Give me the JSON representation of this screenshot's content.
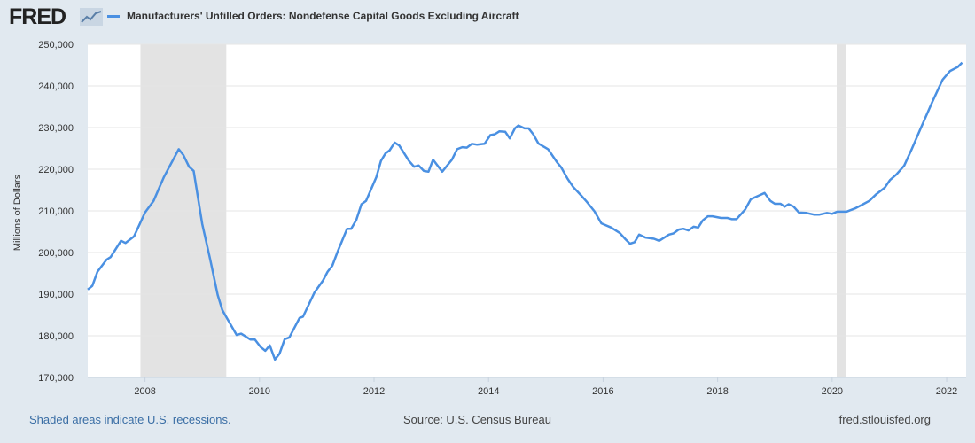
{
  "header": {
    "logo": "FRED",
    "title": "Manufacturers' Unfilled Orders: Nondefense Capital Goods Excluding Aircraft"
  },
  "footer": {
    "recession_note": "Shaded areas indicate U.S. recessions.",
    "source": "Source: U.S. Census Bureau",
    "site": "fred.stlouisfed.org"
  },
  "colors": {
    "line": "#4a90e2",
    "recession": "#e3e3e3",
    "grid": "#e6e6e6",
    "background": "#e1e9f0"
  },
  "chart_data": {
    "type": "line",
    "title": "Manufacturers' Unfilled Orders: Nondefense Capital Goods Excluding Aircraft",
    "xlabel": "",
    "ylabel": "Millions of Dollars",
    "xlim": [
      2007.0,
      2022.34
    ],
    "ylim": [
      170000,
      250000
    ],
    "grid": true,
    "legend_position": "top-left",
    "x_ticks": [
      2008,
      2010,
      2012,
      2014,
      2016,
      2018,
      2020,
      2022
    ],
    "x_tick_labels": [
      "2008",
      "2010",
      "2012",
      "2014",
      "2016",
      "2018",
      "2020",
      "2022"
    ],
    "y_ticks": [
      170000,
      180000,
      190000,
      200000,
      210000,
      220000,
      230000,
      240000,
      250000
    ],
    "y_tick_labels": [
      "170,000",
      "180,000",
      "190,000",
      "200,000",
      "210,000",
      "220,000",
      "230,000",
      "240,000",
      "250,000"
    ],
    "recessions": [
      [
        2007.92,
        2009.42
      ],
      [
        2020.08,
        2020.25
      ]
    ],
    "series": [
      {
        "name": "Manufacturers' Unfilled Orders: Nondefense Capital Goods Excluding Aircraft",
        "points": [
          [
            2007.0,
            191100
          ],
          [
            2007.08,
            192000
          ],
          [
            2007.17,
            195400
          ],
          [
            2007.33,
            198300
          ],
          [
            2007.4,
            198900
          ],
          [
            2007.58,
            202800
          ],
          [
            2007.66,
            202300
          ],
          [
            2007.81,
            203900
          ],
          [
            2008.0,
            209600
          ],
          [
            2008.15,
            212400
          ],
          [
            2008.33,
            218100
          ],
          [
            2008.41,
            220200
          ],
          [
            2008.59,
            224800
          ],
          [
            2008.67,
            223400
          ],
          [
            2008.77,
            220600
          ],
          [
            2008.85,
            219600
          ],
          [
            2009.0,
            206800
          ],
          [
            2009.14,
            198300
          ],
          [
            2009.27,
            189800
          ],
          [
            2009.35,
            186200
          ],
          [
            2009.6,
            180200
          ],
          [
            2009.68,
            180500
          ],
          [
            2009.84,
            179100
          ],
          [
            2009.92,
            179100
          ],
          [
            2010.02,
            177300
          ],
          [
            2010.1,
            176400
          ],
          [
            2010.18,
            177700
          ],
          [
            2010.27,
            174300
          ],
          [
            2010.35,
            175700
          ],
          [
            2010.44,
            179200
          ],
          [
            2010.52,
            179600
          ],
          [
            2010.7,
            184300
          ],
          [
            2010.76,
            184600
          ],
          [
            2010.96,
            190400
          ],
          [
            2011.11,
            193300
          ],
          [
            2011.19,
            195400
          ],
          [
            2011.27,
            196800
          ],
          [
            2011.37,
            200400
          ],
          [
            2011.53,
            205700
          ],
          [
            2011.6,
            205700
          ],
          [
            2011.69,
            207800
          ],
          [
            2011.78,
            211600
          ],
          [
            2011.86,
            212400
          ],
          [
            2012.04,
            218100
          ],
          [
            2012.12,
            222000
          ],
          [
            2012.2,
            223800
          ],
          [
            2012.27,
            224500
          ],
          [
            2012.36,
            226400
          ],
          [
            2012.44,
            225700
          ],
          [
            2012.61,
            222000
          ],
          [
            2012.7,
            220600
          ],
          [
            2012.78,
            220900
          ],
          [
            2012.87,
            219600
          ],
          [
            2012.95,
            219400
          ],
          [
            2013.03,
            222300
          ],
          [
            2013.19,
            219400
          ],
          [
            2013.36,
            222300
          ],
          [
            2013.45,
            224800
          ],
          [
            2013.54,
            225300
          ],
          [
            2013.62,
            225200
          ],
          [
            2013.71,
            226100
          ],
          [
            2013.8,
            225900
          ],
          [
            2013.93,
            226100
          ],
          [
            2014.03,
            228200
          ],
          [
            2014.11,
            228400
          ],
          [
            2014.19,
            229100
          ],
          [
            2014.29,
            229000
          ],
          [
            2014.37,
            227400
          ],
          [
            2014.46,
            229800
          ],
          [
            2014.52,
            230500
          ],
          [
            2014.63,
            229800
          ],
          [
            2014.7,
            229800
          ],
          [
            2014.78,
            228400
          ],
          [
            2014.87,
            226200
          ],
          [
            2015.04,
            224800
          ],
          [
            2015.2,
            221600
          ],
          [
            2015.27,
            220400
          ],
          [
            2015.38,
            217700
          ],
          [
            2015.48,
            215700
          ],
          [
            2015.61,
            213800
          ],
          [
            2015.72,
            212100
          ],
          [
            2015.85,
            209900
          ],
          [
            2015.97,
            207000
          ],
          [
            2016.14,
            206000
          ],
          [
            2016.29,
            204700
          ],
          [
            2016.39,
            203200
          ],
          [
            2016.47,
            202100
          ],
          [
            2016.55,
            202500
          ],
          [
            2016.63,
            204300
          ],
          [
            2016.74,
            203600
          ],
          [
            2016.89,
            203300
          ],
          [
            2016.98,
            202800
          ],
          [
            2017.15,
            204300
          ],
          [
            2017.23,
            204600
          ],
          [
            2017.32,
            205500
          ],
          [
            2017.4,
            205700
          ],
          [
            2017.49,
            205300
          ],
          [
            2017.58,
            206200
          ],
          [
            2017.66,
            206000
          ],
          [
            2017.74,
            207700
          ],
          [
            2017.83,
            208700
          ],
          [
            2017.91,
            208700
          ],
          [
            2018.06,
            208300
          ],
          [
            2018.17,
            208300
          ],
          [
            2018.25,
            208000
          ],
          [
            2018.33,
            208000
          ],
          [
            2018.48,
            210300
          ],
          [
            2018.58,
            212800
          ],
          [
            2018.69,
            213500
          ],
          [
            2018.82,
            214300
          ],
          [
            2018.92,
            212400
          ],
          [
            2019.0,
            211700
          ],
          [
            2019.1,
            211700
          ],
          [
            2019.17,
            211000
          ],
          [
            2019.24,
            211600
          ],
          [
            2019.33,
            211000
          ],
          [
            2019.42,
            209600
          ],
          [
            2019.55,
            209500
          ],
          [
            2019.68,
            209100
          ],
          [
            2019.78,
            209100
          ],
          [
            2019.91,
            209500
          ],
          [
            2020.0,
            209300
          ],
          [
            2020.09,
            209800
          ],
          [
            2020.25,
            209800
          ],
          [
            2020.4,
            210600
          ],
          [
            2020.53,
            211500
          ],
          [
            2020.65,
            212400
          ],
          [
            2020.77,
            214000
          ],
          [
            2020.92,
            215600
          ],
          [
            2021.01,
            217400
          ],
          [
            2021.12,
            218700
          ],
          [
            2021.26,
            220900
          ],
          [
            2021.39,
            224800
          ],
          [
            2021.54,
            229600
          ],
          [
            2021.75,
            236200
          ],
          [
            2021.93,
            241500
          ],
          [
            2022.06,
            243600
          ],
          [
            2022.19,
            244500
          ],
          [
            2022.27,
            245600
          ]
        ]
      }
    ]
  }
}
